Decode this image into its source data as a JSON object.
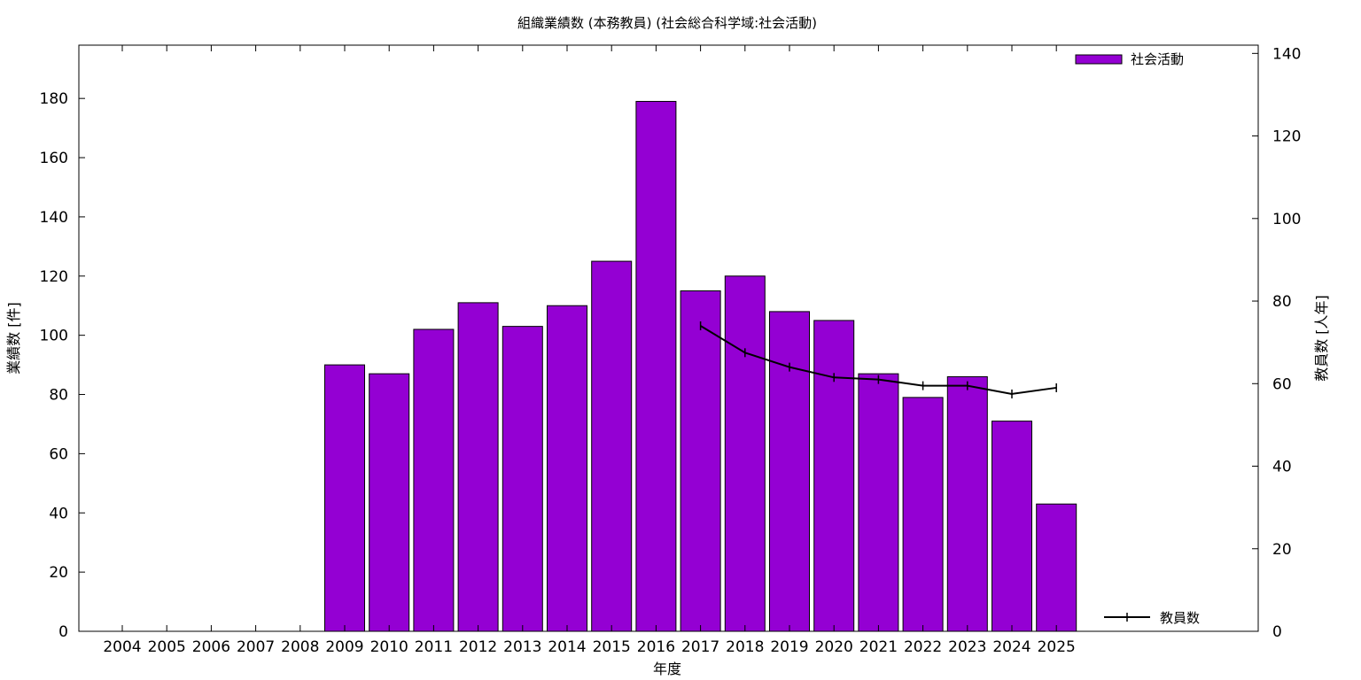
{
  "chart_data": {
    "type": "bar",
    "title": "組織業績数 (本務教員) (社会総合科学域:社会活動)",
    "xlabel": "年度",
    "ylabel": "業績数 [件]",
    "y2label": "教員数 [人年]",
    "categories": [
      "2004",
      "2005",
      "2006",
      "2007",
      "2008",
      "2009",
      "2010",
      "2011",
      "2012",
      "2013",
      "2014",
      "2015",
      "2016",
      "2017",
      "2018",
      "2019",
      "2020",
      "2021",
      "2022",
      "2023",
      "2024",
      "2025"
    ],
    "ylim": [
      0,
      198
    ],
    "y2lim": [
      0,
      142
    ],
    "yticks": [
      0,
      20,
      40,
      60,
      80,
      100,
      120,
      140,
      160,
      180
    ],
    "y2ticks": [
      0,
      20,
      40,
      60,
      80,
      100,
      120,
      140
    ],
    "grid": false,
    "legend_position": "top-right",
    "bar_series": {
      "name": "社会活動",
      "color": "#9400d3",
      "values": [
        null,
        null,
        null,
        null,
        null,
        90,
        87,
        102,
        111,
        103,
        110,
        125,
        179,
        115,
        120,
        108,
        105,
        87,
        79,
        86,
        71,
        43
      ]
    },
    "line_series": {
      "name": "教員数",
      "color": "#000000",
      "axis": "y2",
      "values": [
        null,
        null,
        null,
        null,
        null,
        null,
        null,
        null,
        null,
        null,
        null,
        null,
        null,
        74,
        67.5,
        64,
        61.5,
        61,
        59.5,
        59.5,
        57.5,
        59
      ]
    }
  }
}
